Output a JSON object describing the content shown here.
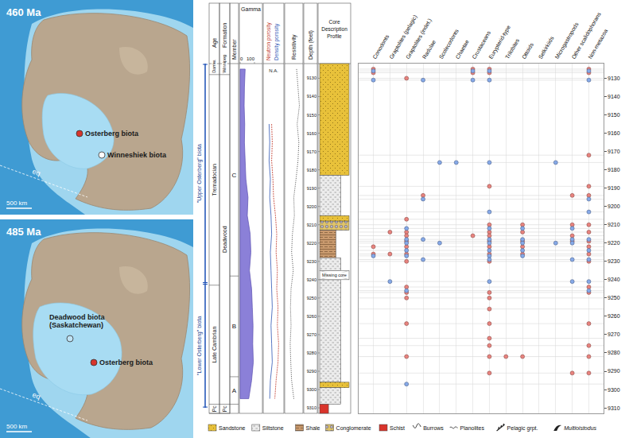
{
  "maps": [
    {
      "age_label": "460 Ma",
      "equator": "eq",
      "scale_bar": "500 km",
      "localities": [
        {
          "name": "Osterberg biota",
          "color": "#d7352b"
        },
        {
          "name": "Winneshiek biota",
          "color": "#ffffff"
        }
      ]
    },
    {
      "age_label": "485 Ma",
      "equator": "eq",
      "scale_bar": "500 km",
      "localities": [
        {
          "name": "Deadwood biota (Saskatchewan)",
          "color": "#bfe3f5"
        },
        {
          "name": "Osterberg biota",
          "color": "#d7352b"
        }
      ]
    }
  ],
  "biota_intervals": [
    {
      "label": "\"Upper Osterberg\" biota",
      "top": 9122,
      "base": 9242
    },
    {
      "label": "\"Lower Osterberg\" biota",
      "top": 9242,
      "base": 9310
    }
  ],
  "log": {
    "headers": {
      "age": "Age",
      "formation": "Formation",
      "member": "Member",
      "gamma": "Gamma",
      "porosity": [
        "Neutron porosity",
        "Density porosity"
      ],
      "resistivity": "Resistivity",
      "depth": "Depth (feet)",
      "core": "Core Description Profile"
    },
    "ages": [
      {
        "label": "Darriw.",
        "top": 9122,
        "base": 9128
      },
      {
        "label": "Tremadocian",
        "top": 9128,
        "base": 9243
      },
      {
        "label": "Late Cambrian",
        "top": 9243,
        "base": 9308
      },
      {
        "label": "Pc",
        "top": 9308,
        "base": 9313
      }
    ],
    "formations": [
      {
        "label": "Winnipeg",
        "top": 9122,
        "base": 9128
      },
      {
        "label": "Deadwood",
        "top": 9128,
        "base": 9308
      },
      {
        "label": "Pc",
        "top": 9308,
        "base": 9313
      }
    ],
    "members": [
      {
        "label": "C",
        "top": 9128,
        "base": 9238
      },
      {
        "label": "B",
        "top": 9238,
        "base": 9293
      },
      {
        "label": "A",
        "top": 9293,
        "base": 9308
      }
    ],
    "gamma": {
      "xlim": [
        0,
        150
      ],
      "xticks": [
        0,
        100
      ],
      "depth": [
        9125,
        9135,
        9145,
        9155,
        9165,
        9175,
        9185,
        9195,
        9205,
        9215,
        9225,
        9235,
        9245,
        9255,
        9265,
        9275,
        9285,
        9295,
        9305
      ],
      "values": [
        35,
        30,
        28,
        32,
        30,
        35,
        40,
        55,
        50,
        70,
        75,
        65,
        80,
        85,
        90,
        88,
        92,
        80,
        60
      ]
    },
    "porosity": {
      "xlim": [
        0,
        30
      ],
      "na_label": "N.A.",
      "depth": [
        9125,
        9135,
        9145,
        9155,
        9165,
        9175,
        9185,
        9195,
        9205,
        9215,
        9225,
        9235,
        9245,
        9255,
        9265,
        9275,
        9285,
        9295,
        9305
      ],
      "neutron": [
        null,
        null,
        null,
        12,
        13,
        12,
        14,
        15,
        18,
        20,
        19,
        21,
        20,
        22,
        21,
        23,
        22,
        19,
        17
      ],
      "density": [
        null,
        null,
        null,
        8,
        9,
        8,
        10,
        9,
        11,
        12,
        10,
        11,
        12,
        13,
        11,
        12,
        13,
        10,
        9
      ]
    },
    "resistivity": {
      "xlim": [
        0,
        60
      ],
      "depth": [
        9125,
        9135,
        9145,
        9155,
        9165,
        9175,
        9185,
        9195,
        9205,
        9215,
        9225,
        9235,
        9245,
        9255,
        9265,
        9275,
        9285,
        9295,
        9305
      ],
      "values": [
        40,
        45,
        50,
        42,
        48,
        45,
        38,
        30,
        32,
        25,
        22,
        28,
        20,
        18,
        20,
        17,
        19,
        22,
        30
      ]
    },
    "depth_ticks": [
      9130,
      9140,
      9150,
      9160,
      9170,
      9180,
      9190,
      9200,
      9210,
      9220,
      9230,
      9240,
      9250,
      9260,
      9270,
      9280,
      9290,
      9300,
      9310
    ],
    "lithology": [
      {
        "type": "Sandstone",
        "top": 9122,
        "base": 9183
      },
      {
        "type": "Siltstone",
        "top": 9183,
        "base": 9205
      },
      {
        "type": "Sandstone",
        "top": 9205,
        "base": 9208
      },
      {
        "type": "Conglomerate",
        "top": 9208,
        "base": 9213
      },
      {
        "type": "Shale",
        "top": 9213,
        "base": 9228
      },
      {
        "type": "Siltstone",
        "top": 9228,
        "base": 9235
      },
      {
        "type": "Siltstone",
        "top": 9240,
        "base": 9296
      },
      {
        "type": "Sandstone",
        "top": 9296,
        "base": 9299
      },
      {
        "type": "Siltstone",
        "top": 9299,
        "base": 9308
      },
      {
        "type": "Schist",
        "top": 9308,
        "base": 9313
      }
    ],
    "missing_core": {
      "label": "Missing core",
      "top": 9235,
      "base": 9240
    }
  },
  "legend": [
    {
      "label": "Sandstone",
      "color": "#e8c13a",
      "marker": "dots"
    },
    {
      "label": "Siltstone",
      "color": "#ececec",
      "marker": "dashes"
    },
    {
      "label": "Shale",
      "color": "#c99a6e",
      "marker": "lines"
    },
    {
      "label": "Conglomerate",
      "color": "#e0c46a",
      "marker": "pebbles"
    },
    {
      "label": "Schist",
      "color": "#d9342b",
      "marker": "solid"
    },
    {
      "label": "Burrows",
      "color": "#333333",
      "marker": "burrow"
    },
    {
      "label": "Planolites",
      "color": "#333333",
      "marker": "planolites"
    },
    {
      "label": "Pelagic grpt.",
      "color": "#222222",
      "marker": "graptolite"
    },
    {
      "label": "Multioistodus",
      "color": "#222222",
      "marker": "conodont",
      "font_style": "italic"
    }
  ],
  "chart_data": {
    "type": "scatter",
    "categories": [
      "Conodonts",
      "Graptolites (pelagic)",
      "Graptolites (indet.)",
      "Radulae",
      "Scolecodonts",
      "Chaetae",
      "Crustaceans",
      "Eurypterid-type",
      "Trilobites",
      "Ottoids",
      "Selkirkiids",
      "Microgastropods",
      "Other scalidophorans",
      "Non-metazoa"
    ],
    "ylim": [
      9122,
      9313
    ],
    "yticks": [
      9130,
      9140,
      9150,
      9160,
      9170,
      9180,
      9190,
      9200,
      9210,
      9220,
      9230,
      9240,
      9250,
      9260,
      9270,
      9280,
      9290,
      9300,
      9310
    ],
    "grid": true,
    "series": [
      {
        "color": "#e8837e",
        "marker": "circle",
        "rows": [
          {
            "depth": 9125,
            "taxa": [
              "Conodonts",
              "Crustaceans",
              "Eurypterid-type",
              "Non-metazoa"
            ]
          },
          {
            "depth": 9127,
            "taxa": [
              "Conodonts",
              "Crustaceans",
              "Eurypterid-type",
              "Non-metazoa"
            ]
          },
          {
            "depth": 9130,
            "taxa": [
              "Graptolites (indet.)"
            ]
          },
          {
            "depth": 9172,
            "taxa": [
              "Non-metazoa"
            ]
          },
          {
            "depth": 9189,
            "taxa": [
              "Eurypterid-type",
              "Non-metazoa"
            ]
          },
          {
            "depth": 9194,
            "taxa": [
              "Radulae",
              "Other scalidophorans",
              "Non-metazoa"
            ]
          },
          {
            "depth": 9207,
            "taxa": [
              "Graptolites (indet.)"
            ]
          },
          {
            "depth": 9210,
            "taxa": [
              "Eurypterid-type",
              "Ottoids",
              "Other scalidophorans",
              "Non-metazoa"
            ]
          },
          {
            "depth": 9214,
            "taxa": [
              "Graptolites (pelagic)",
              "Graptolites (indet.)",
              "Eurypterid-type",
              "Ottoids",
              "Non-metazoa"
            ]
          },
          {
            "depth": 9216,
            "taxa": [
              "Graptolites (indet.)",
              "Crustaceans",
              "Eurypterid-type",
              "Other scalidophorans"
            ]
          },
          {
            "depth": 9219,
            "taxa": [
              "Graptolites (indet.)",
              "Eurypterid-type",
              "Ottoids",
              "Other scalidophorans",
              "Non-metazoa"
            ]
          },
          {
            "depth": 9222,
            "taxa": [
              "Conodonts",
              "Graptolites (indet.)",
              "Eurypterid-type",
              "Ottoids",
              "Non-metazoa"
            ]
          },
          {
            "depth": 9226,
            "taxa": [
              "Conodonts",
              "Graptolites (pelagic)",
              "Graptolites (indet.)",
              "Eurypterid-type",
              "Ottoids",
              "Non-metazoa"
            ]
          },
          {
            "depth": 9230,
            "taxa": [
              "Graptolites (indet.)",
              "Eurypterid-type",
              "Non-metazoa"
            ]
          },
          {
            "depth": 9244,
            "taxa": [
              "Graptolites (indet.)",
              "Non-metazoa"
            ]
          },
          {
            "depth": 9247,
            "taxa": [
              "Graptolites (indet.)",
              "Eurypterid-type",
              "Non-metazoa"
            ]
          },
          {
            "depth": 9250,
            "taxa": [
              "Graptolites (indet.)",
              "Eurypterid-type"
            ]
          },
          {
            "depth": 9256,
            "taxa": [
              "Eurypterid-type"
            ]
          },
          {
            "depth": 9264,
            "taxa": [
              "Graptolites (indet.)",
              "Eurypterid-type",
              "Non-metazoa"
            ]
          },
          {
            "depth": 9272,
            "taxa": [
              "Eurypterid-type"
            ]
          },
          {
            "depth": 9276,
            "taxa": [
              "Eurypterid-type",
              "Non-metazoa"
            ]
          },
          {
            "depth": 9282,
            "taxa": [
              "Graptolites (indet.)",
              "Eurypterid-type",
              "Trilobites",
              "Ottoids",
              "Non-metazoa"
            ]
          },
          {
            "depth": 9291,
            "taxa": [
              "Eurypterid-type",
              "Other scalidophorans",
              "Non-metazoa"
            ]
          }
        ]
      },
      {
        "color": "#86a9e8",
        "marker": "circle",
        "rows": [
          {
            "depth": 9126,
            "taxa": [
              "Conodonts",
              "Crustaceans",
              "Eurypterid-type",
              "Non-metazoa"
            ]
          },
          {
            "depth": 9131,
            "taxa": [
              "Conodonts",
              "Radulae",
              "Crustaceans",
              "Eurypterid-type",
              "Non-metazoa"
            ]
          },
          {
            "depth": 9176,
            "taxa": [
              "Scolecodonts",
              "Chaetae",
              "Eurypterid-type",
              "Microgastropods"
            ]
          },
          {
            "depth": 9196,
            "taxa": [
              "Radulae",
              "Non-metazoa"
            ]
          },
          {
            "depth": 9203,
            "taxa": [
              "Eurypterid-type",
              "Non-metazoa"
            ]
          },
          {
            "depth": 9212,
            "taxa": [
              "Graptolites (indet.)",
              "Eurypterid-type",
              "Ottoids",
              "Other scalidophorans"
            ]
          },
          {
            "depth": 9218,
            "taxa": [
              "Graptolites (indet.)",
              "Radulae",
              "Eurypterid-type",
              "Ottoids",
              "Other scalidophorans",
              "Non-metazoa"
            ]
          },
          {
            "depth": 9220,
            "taxa": [
              "Graptolites (indet.)",
              "Scolecodonts",
              "Eurypterid-type",
              "Ottoids",
              "Microgastropods",
              "Other scalidophorans"
            ]
          },
          {
            "depth": 9224,
            "taxa": [
              "Graptolites (indet.)",
              "Eurypterid-type",
              "Ottoids",
              "Non-metazoa"
            ]
          },
          {
            "depth": 9227,
            "taxa": [
              "Conodonts",
              "Graptolites (indet.)",
              "Eurypterid-type",
              "Ottoids"
            ]
          },
          {
            "depth": 9229,
            "taxa": [
              "Radulae",
              "Eurypterid-type",
              "Other scalidophorans",
              "Non-metazoa"
            ]
          },
          {
            "depth": 9241,
            "taxa": [
              "Graptolites (pelagic)",
              "Eurypterid-type",
              "Other scalidophorans",
              "Non-metazoa"
            ]
          },
          {
            "depth": 9246,
            "taxa": [
              "Graptolites (indet.)",
              "Non-metazoa"
            ]
          },
          {
            "depth": 9297,
            "taxa": [
              "Graptolites (indet.)"
            ]
          }
        ]
      }
    ]
  }
}
